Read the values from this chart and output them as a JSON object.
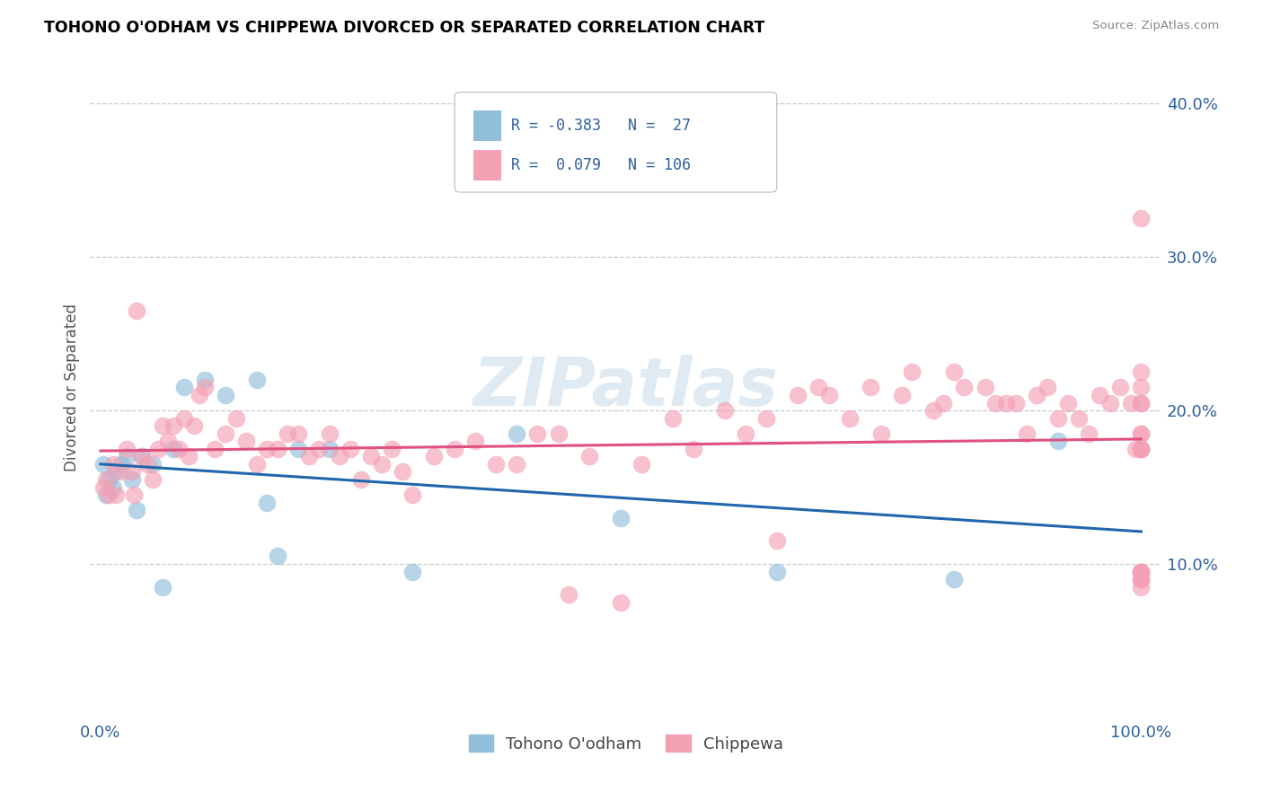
{
  "title": "TOHONO O'ODHAM VS CHIPPEWA DIVORCED OR SEPARATED CORRELATION CHART",
  "source": "Source: ZipAtlas.com",
  "ylabel": "Divorced or Separated",
  "legend_label1": "Tohono O'odham",
  "legend_label2": "Chippewa",
  "R1": -0.383,
  "N1": 27,
  "R2": 0.079,
  "N2": 106,
  "watermark": "ZIPatlas",
  "blue_color": "#91bfdb",
  "pink_color": "#f4a0b5",
  "blue_line_color": "#2166ac",
  "pink_line_color": "#e05080",
  "tohono_x": [
    0.3,
    0.5,
    0.8,
    1.2,
    1.5,
    2.0,
    2.5,
    3.0,
    3.5,
    4.0,
    5.0,
    6.0,
    7.0,
    8.0,
    10.0,
    12.0,
    15.0,
    16.0,
    17.0,
    19.0,
    22.0,
    30.0,
    40.0,
    50.0,
    65.0,
    82.0,
    92.0
  ],
  "tohono_y": [
    16.5,
    14.5,
    15.5,
    15.0,
    16.0,
    16.5,
    17.0,
    15.5,
    13.5,
    17.0,
    16.5,
    8.5,
    17.5,
    21.5,
    22.0,
    21.0,
    22.0,
    14.0,
    10.5,
    17.5,
    17.5,
    9.5,
    18.5,
    13.0,
    9.5,
    9.0,
    18.0
  ],
  "chippewa_x": [
    0.3,
    0.5,
    0.8,
    1.2,
    1.5,
    2.0,
    2.5,
    3.0,
    3.2,
    3.5,
    4.0,
    4.5,
    5.0,
    5.5,
    6.0,
    6.5,
    7.0,
    7.5,
    8.0,
    8.5,
    9.0,
    9.5,
    10.0,
    11.0,
    12.0,
    13.0,
    14.0,
    15.0,
    16.0,
    17.0,
    18.0,
    19.0,
    20.0,
    21.0,
    22.0,
    23.0,
    24.0,
    25.0,
    26.0,
    27.0,
    28.0,
    29.0,
    30.0,
    32.0,
    34.0,
    36.0,
    38.0,
    40.0,
    42.0,
    44.0,
    45.0,
    47.0,
    50.0,
    52.0,
    55.0,
    57.0,
    60.0,
    62.0,
    64.0,
    65.0,
    67.0,
    69.0,
    70.0,
    72.0,
    74.0,
    75.0,
    77.0,
    78.0,
    80.0,
    81.0,
    82.0,
    83.0,
    85.0,
    86.0,
    87.0,
    88.0,
    89.0,
    90.0,
    91.0,
    92.0,
    93.0,
    94.0,
    95.0,
    96.0,
    97.0,
    98.0,
    99.0,
    99.5,
    100.0,
    100.0,
    100.0,
    100.0,
    100.0,
    100.0,
    100.0,
    100.0,
    100.0,
    100.0,
    100.0,
    100.0,
    100.0,
    100.0,
    100.0,
    100.0,
    100.0,
    100.0
  ],
  "chippewa_y": [
    15.0,
    15.5,
    14.5,
    16.5,
    14.5,
    16.0,
    17.5,
    16.0,
    14.5,
    26.5,
    17.0,
    16.5,
    15.5,
    17.5,
    19.0,
    18.0,
    19.0,
    17.5,
    19.5,
    17.0,
    19.0,
    21.0,
    21.5,
    17.5,
    18.5,
    19.5,
    18.0,
    16.5,
    17.5,
    17.5,
    18.5,
    18.5,
    17.0,
    17.5,
    18.5,
    17.0,
    17.5,
    15.5,
    17.0,
    16.5,
    17.5,
    16.0,
    14.5,
    17.0,
    17.5,
    18.0,
    16.5,
    16.5,
    18.5,
    18.5,
    8.0,
    17.0,
    7.5,
    16.5,
    19.5,
    17.5,
    20.0,
    18.5,
    19.5,
    11.5,
    21.0,
    21.5,
    21.0,
    19.5,
    21.5,
    18.5,
    21.0,
    22.5,
    20.0,
    20.5,
    22.5,
    21.5,
    21.5,
    20.5,
    20.5,
    20.5,
    18.5,
    21.0,
    21.5,
    19.5,
    20.5,
    19.5,
    18.5,
    21.0,
    20.5,
    21.5,
    20.5,
    17.5,
    17.5,
    9.5,
    9.5,
    9.0,
    9.5,
    18.5,
    20.5,
    22.5,
    20.5,
    32.5,
    18.5,
    17.5,
    21.5,
    17.5,
    8.5,
    9.0,
    9.5,
    9.0
  ]
}
